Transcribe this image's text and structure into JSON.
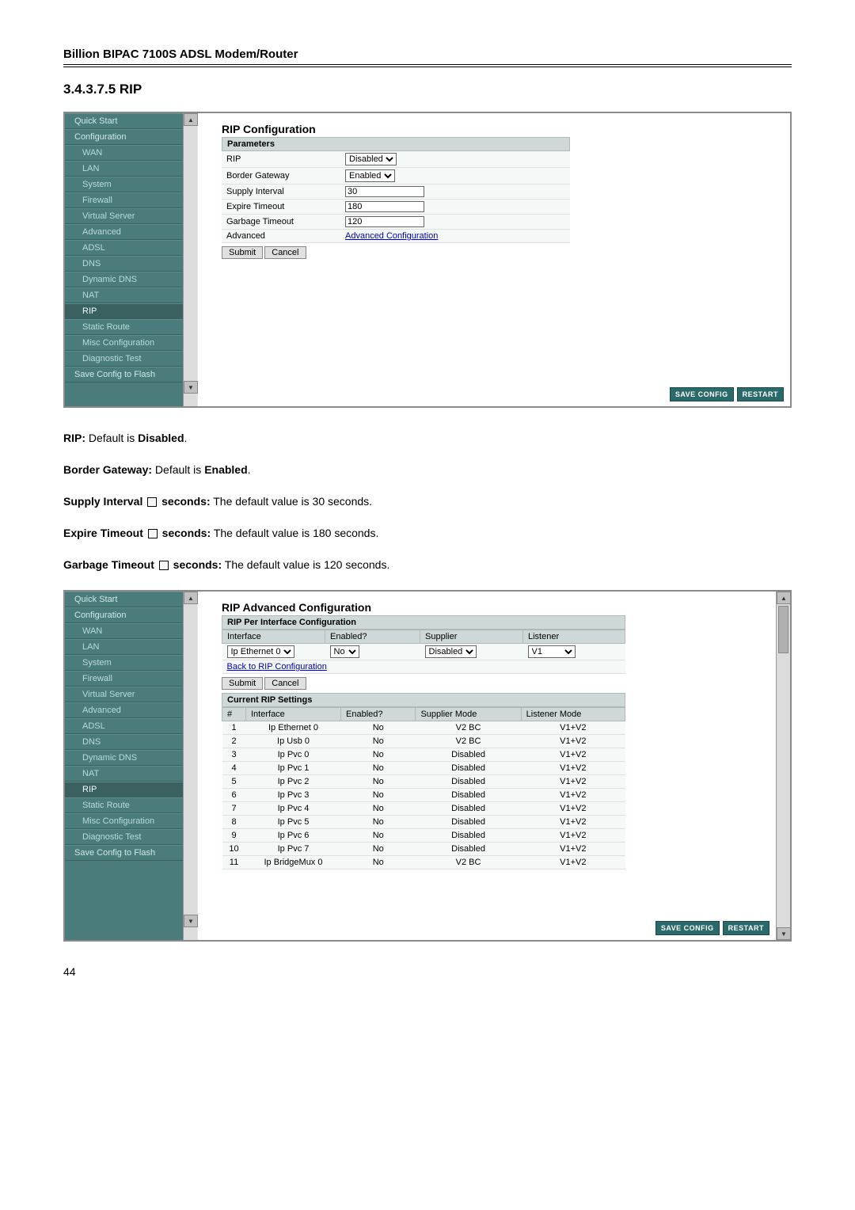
{
  "doc_header": "Billion BIPAC 7100S ADSL Modem/Router",
  "section_title": "3.4.3.7.5 RIP",
  "sidebar": {
    "items": [
      {
        "label": "Quick Start",
        "sub": false
      },
      {
        "label": "Configuration",
        "sub": false
      },
      {
        "label": "WAN",
        "sub": true
      },
      {
        "label": "LAN",
        "sub": true
      },
      {
        "label": "System",
        "sub": true
      },
      {
        "label": "Firewall",
        "sub": true
      },
      {
        "label": "Virtual Server",
        "sub": true
      },
      {
        "label": "Advanced",
        "sub": true
      },
      {
        "label": "ADSL",
        "sub": true
      },
      {
        "label": "DNS",
        "sub": true
      },
      {
        "label": "Dynamic DNS",
        "sub": true
      },
      {
        "label": "NAT",
        "sub": true
      },
      {
        "label": "RIP",
        "sub": true,
        "active": true
      },
      {
        "label": "Static Route",
        "sub": true
      },
      {
        "label": "Misc Configuration",
        "sub": true
      },
      {
        "label": "Diagnostic Test",
        "sub": true
      },
      {
        "label": "Save Config to Flash",
        "sub": false
      }
    ]
  },
  "rip_config": {
    "title": "RIP Configuration",
    "subhead": "Parameters",
    "rows": [
      {
        "label": "RIP",
        "type": "select",
        "value": "Disabled"
      },
      {
        "label": "Border Gateway",
        "type": "select",
        "value": "Enabled"
      },
      {
        "label": "Supply Interval",
        "type": "text",
        "value": "30"
      },
      {
        "label": "Expire Timeout",
        "type": "text",
        "value": "180"
      },
      {
        "label": "Garbage Timeout",
        "type": "text",
        "value": "120"
      },
      {
        "label": "Advanced",
        "type": "link",
        "value": "Advanced Configuration"
      }
    ],
    "submit": "Submit",
    "cancel": "Cancel"
  },
  "footer_btns": {
    "save": "SAVE CONFIG",
    "restart": "RESTART"
  },
  "descriptions": {
    "rip": {
      "label": "RIP:",
      "text": " Default is ",
      "bold": "Disabled",
      "tail": "."
    },
    "border": {
      "label": "Border Gateway:",
      "text": " Default is ",
      "bold": "Enabled",
      "tail": "."
    },
    "supply": {
      "pre": "Supply Interval ",
      "post": " seconds:",
      "text": " The default value is 30 seconds."
    },
    "expire": {
      "pre": "Expire Timeout ",
      "post": " seconds:",
      "text": " The default value is 180 seconds."
    },
    "garbage": {
      "pre": "Garbage Timeout ",
      "post": " seconds:",
      "text": " The default value is 120 seconds."
    }
  },
  "adv_config": {
    "title": "RIP Advanced Configuration",
    "subhead": "RIP Per Interface Configuration",
    "cfg_headers": [
      "Interface",
      "Enabled?",
      "Supplier",
      "Listener"
    ],
    "cfg_values": {
      "interface": "Ip Ethernet 0",
      "enabled": "No",
      "supplier": "Disabled",
      "listener": "V1"
    },
    "back_link": "Back to RIP Configuration",
    "submit": "Submit",
    "cancel": "Cancel",
    "settings_head": "Current RIP Settings",
    "table_headers": [
      "#",
      "Interface",
      "Enabled?",
      "Supplier Mode",
      "Listener Mode"
    ],
    "table_rows": [
      [
        "1",
        "Ip Ethernet 0",
        "No",
        "V2 BC",
        "V1+V2"
      ],
      [
        "2",
        "Ip Usb 0",
        "No",
        "V2 BC",
        "V1+V2"
      ],
      [
        "3",
        "Ip Pvc 0",
        "No",
        "Disabled",
        "V1+V2"
      ],
      [
        "4",
        "Ip Pvc 1",
        "No",
        "Disabled",
        "V1+V2"
      ],
      [
        "5",
        "Ip Pvc 2",
        "No",
        "Disabled",
        "V1+V2"
      ],
      [
        "6",
        "Ip Pvc 3",
        "No",
        "Disabled",
        "V1+V2"
      ],
      [
        "7",
        "Ip Pvc 4",
        "No",
        "Disabled",
        "V1+V2"
      ],
      [
        "8",
        "Ip Pvc 5",
        "No",
        "Disabled",
        "V1+V2"
      ],
      [
        "9",
        "Ip Pvc 6",
        "No",
        "Disabled",
        "V1+V2"
      ],
      [
        "10",
        "Ip Pvc 7",
        "No",
        "Disabled",
        "V1+V2"
      ],
      [
        "11",
        "Ip BridgeMux 0",
        "No",
        "V2 BC",
        "V1+V2"
      ]
    ]
  },
  "page_num": "44",
  "colors": {
    "sidebar_bg": "#4b7c7c",
    "sidebar_text": "#d8f0f0",
    "subhead_bg": "#cfd8d8",
    "row_bg": "#f4f8f6",
    "link": "#0000cc",
    "fbtn_bg": "#2a6a6a"
  }
}
